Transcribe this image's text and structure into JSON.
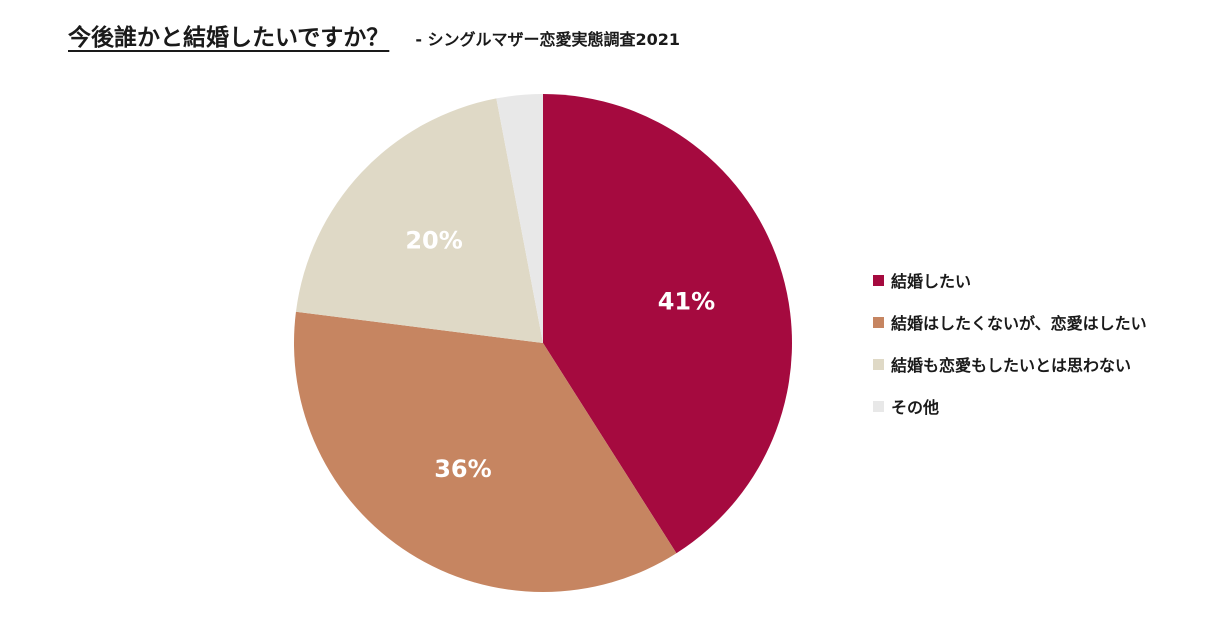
{
  "chart_data": {
    "type": "pie",
    "title": "今後誰かと結婚したいですか？",
    "subtitle": "- シングルマザー恋愛実態調査2021",
    "categories": [
      "結婚したい",
      "結婚はしたくないが、恋愛はしたい",
      "結婚も恋愛もしたいとは思わない",
      "その他"
    ],
    "values": [
      41,
      36,
      20,
      3
    ],
    "data_labels": [
      "41%",
      "36%",
      "20%",
      ""
    ],
    "colors": [
      "#a50a3f",
      "#c68561",
      "#dfd9c6",
      "#e8e8e8"
    ],
    "legend_position": "right"
  }
}
